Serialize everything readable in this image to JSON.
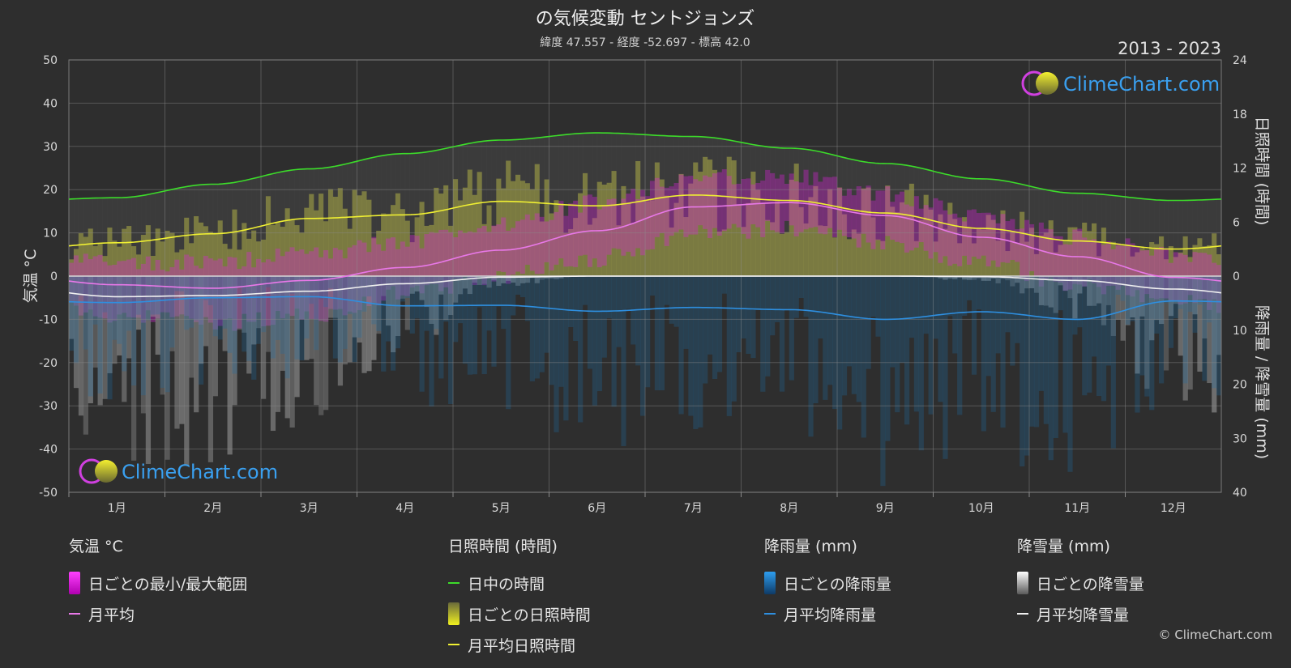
{
  "title": "の気候変動 セントジョンズ",
  "subtitle": "緯度 47.557 - 経度 -52.697 - 標高 42.0",
  "year_range": "2013 - 2023",
  "watermark": "ClimeChart.com",
  "copyright": "© ClimeChart.com",
  "colors": {
    "daylight": "#3cdc2a",
    "sunshine_avg": "#f0f032",
    "temp_avg": "#e878e8",
    "rain_avg": "#2e8fe0",
    "snow_avg": "#f0f0f0",
    "temp_range": "#e020e0",
    "sun_bar": "#c8c84a",
    "rain_bar": "#1e6ea8",
    "snow_bar": "#9a9a9a",
    "brand_blue": "#3aa0f0"
  },
  "chart_data": {
    "type": "line",
    "x": [
      "1月",
      "2月",
      "3月",
      "4月",
      "5月",
      "6月",
      "7月",
      "8月",
      "9月",
      "10月",
      "11月",
      "12月"
    ],
    "y_left": {
      "label": "気温 °C",
      "ylim": [
        -50,
        50
      ],
      "ticks": [
        "50",
        "40",
        "30",
        "20",
        "10",
        "0",
        "-10",
        "-20",
        "-30",
        "-40",
        "-50"
      ]
    },
    "y_right_top": {
      "label": "日照時間 (時間)",
      "ylim": [
        0,
        24
      ],
      "ticks": [
        "24",
        "18",
        "12",
        "6",
        "0"
      ]
    },
    "y_right_bottom": {
      "label": "降雨量 / 降雪量 (mm)",
      "ylim": [
        0,
        40
      ],
      "ticks": [
        "0",
        "10",
        "20",
        "30",
        "40"
      ]
    },
    "grid": true,
    "series": [
      {
        "name": "日中の時間",
        "axis": "sunshine",
        "values": [
          8.7,
          10.2,
          11.9,
          13.6,
          15.1,
          15.9,
          15.5,
          14.2,
          12.5,
          10.8,
          9.2,
          8.4
        ]
      },
      {
        "name": "月平均日照時間",
        "axis": "sunshine",
        "values": [
          3.7,
          4.7,
          6.4,
          6.8,
          8.3,
          7.8,
          9.0,
          8.4,
          7.0,
          5.3,
          3.9,
          3.0
        ]
      },
      {
        "name": "月平均",
        "axis": "temperature",
        "values": [
          -2.0,
          -2.8,
          -1.0,
          2.0,
          6.0,
          10.5,
          16.0,
          17.0,
          14.0,
          9.0,
          4.5,
          -0.3
        ]
      },
      {
        "name": "月平均降雨量",
        "axis": "precipitation",
        "values": [
          4.9,
          4.0,
          3.8,
          5.5,
          5.4,
          6.5,
          5.8,
          6.2,
          8.0,
          6.6,
          8.0,
          4.6
        ]
      },
      {
        "name": "月平均降雪量",
        "axis": "precipitation",
        "values": [
          3.8,
          3.6,
          2.8,
          1.4,
          0.2,
          0.0,
          0.0,
          0.0,
          0.0,
          0.1,
          0.8,
          2.4
        ]
      }
    ],
    "daily_temp_range": {
      "min": [
        -9,
        -11,
        -9,
        -4,
        0,
        4,
        10,
        11,
        8,
        3,
        -2,
        -6
      ],
      "max": [
        3,
        3,
        5,
        8,
        12,
        17,
        23,
        23,
        19,
        14,
        9,
        5
      ]
    }
  },
  "legend": {
    "temp": {
      "title": "気温 °C",
      "range_label": "日ごとの最小/最大範囲",
      "avg_label": "月平均"
    },
    "sun": {
      "title": "日照時間 (時間)",
      "daylight_label": "日中の時間",
      "daily_label": "日ごとの日照時間",
      "avg_label": "月平均日照時間"
    },
    "rain": {
      "title": "降雨量 (mm)",
      "daily_label": "日ごとの降雨量",
      "avg_label": "月平均降雨量"
    },
    "snow": {
      "title": "降雪量 (mm)",
      "daily_label": "日ごとの降雪量",
      "avg_label": "月平均降雪量"
    }
  }
}
